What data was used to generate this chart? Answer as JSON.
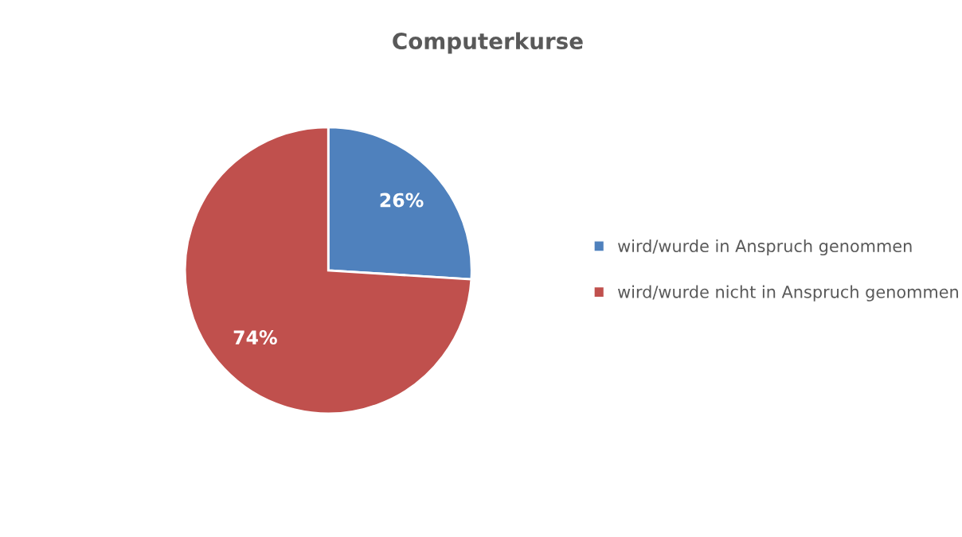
{
  "chart_data": {
    "type": "pie",
    "title": "Computerkurse",
    "categories": [
      "wird/wurde in Anspruch genommen",
      "wird/wurde nicht in Anspruch genommen"
    ],
    "values": [
      26,
      74
    ],
    "colors": [
      "#4f81bd",
      "#c0504d"
    ],
    "value_labels": [
      "26%",
      "74%"
    ],
    "legend": "right"
  }
}
